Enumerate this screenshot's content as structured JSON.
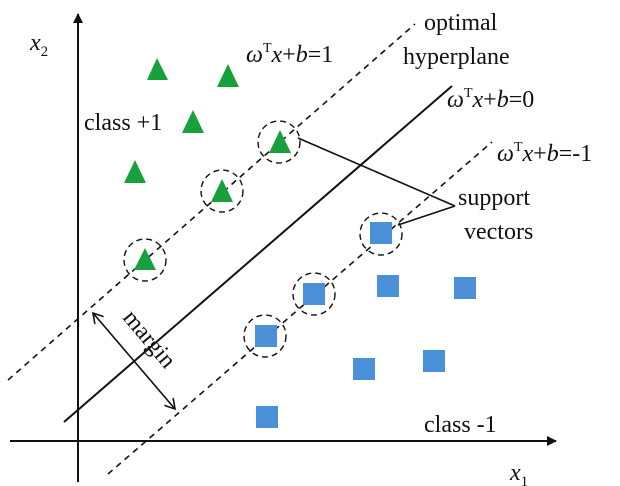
{
  "axes": {
    "x_label": "x",
    "x_sub": "1",
    "y_label": "x",
    "y_sub": "2"
  },
  "labels": {
    "optimal_line1": "optimal",
    "optimal_line2": "hyperplane",
    "eq_omega": "ω",
    "eq_T": "T",
    "eq_x": "x",
    "eq_plus": "+",
    "eq_b": "b",
    "eq_plus1_rhs": "=1",
    "eq_zero_rhs": "=0",
    "eq_minus1_rhs": "=-1",
    "class_pos": "class +1",
    "class_neg": "class -1",
    "support_line1": "support",
    "support_line2": "vectors",
    "margin": "margin"
  },
  "colors": {
    "triangle": "#17a03c",
    "square": "#4a90d9",
    "line": "#111111"
  }
}
